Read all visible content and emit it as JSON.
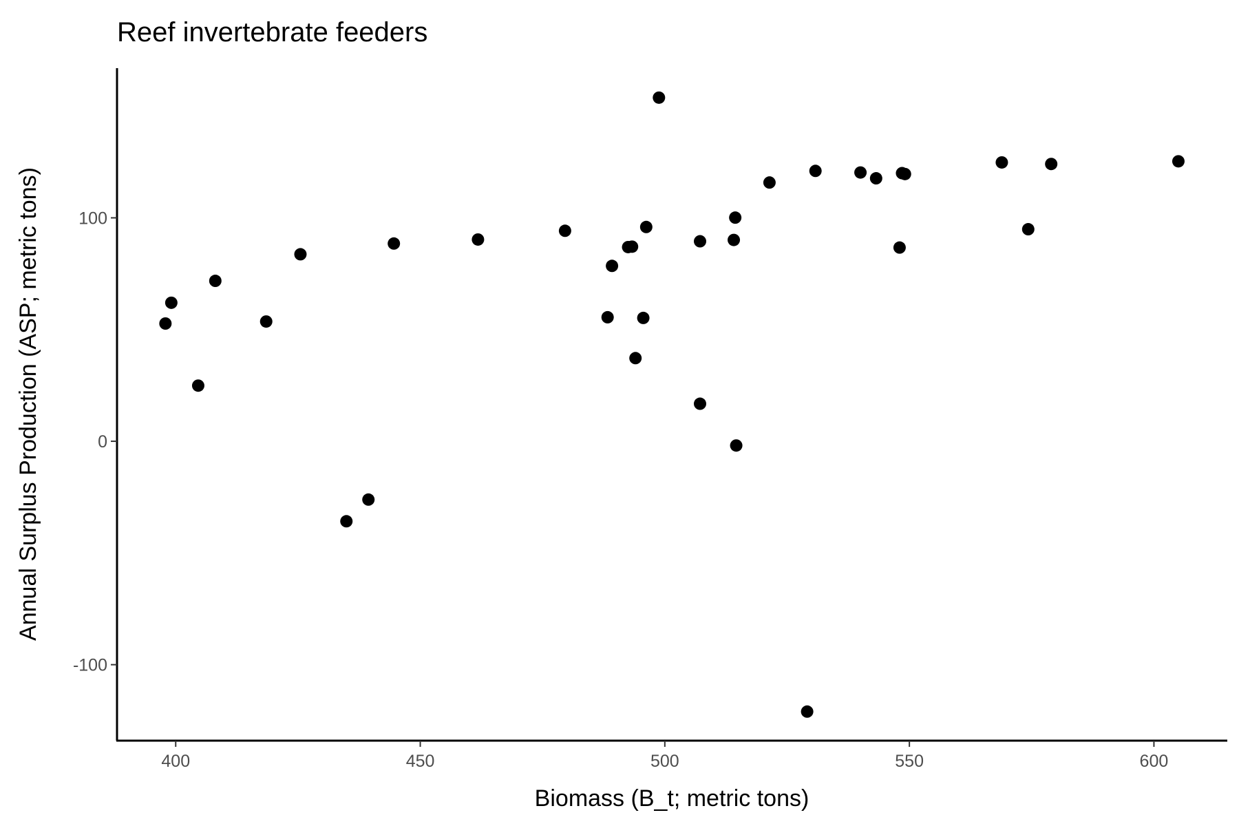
{
  "chart_data": {
    "type": "scatter",
    "title": "Reef invertebrate feeders",
    "xlabel": "Biomass (B_t; metric tons)",
    "ylabel": "Annual Surplus Production (ASP; metric tons)",
    "xlim": [
      388,
      615
    ],
    "ylim": [
      -134,
      167
    ],
    "x_ticks": [
      400,
      450,
      500,
      550,
      600
    ],
    "y_ticks": [
      -100,
      0,
      100
    ],
    "grid": false,
    "point_color": "#000000",
    "points": [
      {
        "x": 397.9,
        "y": 52.7
      },
      {
        "x": 399.1,
        "y": 62.0
      },
      {
        "x": 404.6,
        "y": 24.9
      },
      {
        "x": 408.1,
        "y": 71.8
      },
      {
        "x": 418.5,
        "y": 53.6
      },
      {
        "x": 425.5,
        "y": 83.7
      },
      {
        "x": 434.9,
        "y": -35.8
      },
      {
        "x": 439.4,
        "y": -26.1
      },
      {
        "x": 444.6,
        "y": 88.5
      },
      {
        "x": 461.8,
        "y": 90.3
      },
      {
        "x": 479.6,
        "y": 94.2
      },
      {
        "x": 488.3,
        "y": 55.5
      },
      {
        "x": 489.2,
        "y": 78.5
      },
      {
        "x": 492.5,
        "y": 86.9
      },
      {
        "x": 493.3,
        "y": 87.1
      },
      {
        "x": 494.0,
        "y": 37.2
      },
      {
        "x": 495.6,
        "y": 55.2
      },
      {
        "x": 496.2,
        "y": 95.9
      },
      {
        "x": 498.8,
        "y": 153.8
      },
      {
        "x": 507.2,
        "y": 89.5
      },
      {
        "x": 507.2,
        "y": 16.8
      },
      {
        "x": 514.1,
        "y": 90.1
      },
      {
        "x": 514.4,
        "y": 100.1
      },
      {
        "x": 514.6,
        "y": -1.9
      },
      {
        "x": 521.4,
        "y": 115.8
      },
      {
        "x": 529.1,
        "y": -121.0
      },
      {
        "x": 530.8,
        "y": 121.0
      },
      {
        "x": 540.0,
        "y": 120.3
      },
      {
        "x": 543.2,
        "y": 117.7
      },
      {
        "x": 548.0,
        "y": 86.7
      },
      {
        "x": 548.5,
        "y": 120.0
      },
      {
        "x": 549.1,
        "y": 119.6
      },
      {
        "x": 568.9,
        "y": 124.8
      },
      {
        "x": 574.3,
        "y": 94.9
      },
      {
        "x": 579.0,
        "y": 124.1
      },
      {
        "x": 605.0,
        "y": 125.3
      }
    ]
  }
}
